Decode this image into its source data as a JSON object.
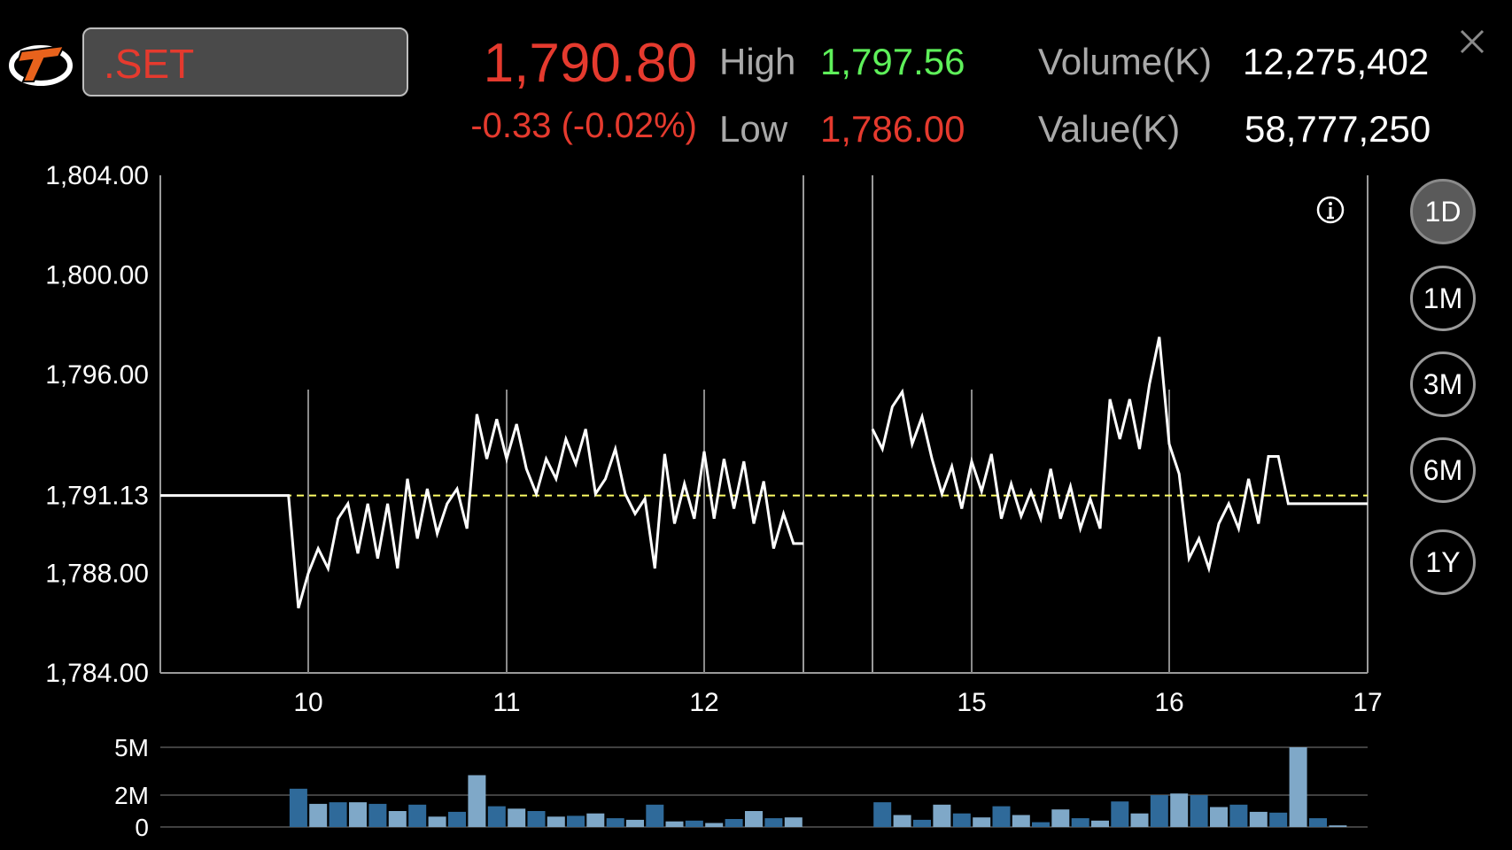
{
  "header": {
    "symbol": ".SET",
    "last_price": "1,790.80",
    "change": "-0.33 (-0.02%)",
    "high_label": "High",
    "high_value": "1,797.56",
    "low_label": "Low",
    "low_value": "1,786.00",
    "volume_label": "Volume(K)",
    "volume_value": "12,275,402",
    "value_label": "Value(K)",
    "value_value": "58,777,250"
  },
  "periods": [
    "1D",
    "1M",
    "3M",
    "6M",
    "1Y"
  ],
  "active_period": "1D",
  "icons": {
    "logo": "brand-logo",
    "close": "close-icon",
    "info": "info-icon"
  },
  "colors": {
    "down": "#e53a2e",
    "up": "#5ef05a",
    "reference": "#ffff66",
    "line": "#ffffff",
    "volume_dark": "#2f6a9a",
    "volume_light": "#7fa8c8"
  },
  "chart_data": [
    {
      "type": "line",
      "title": "",
      "xlabel": "",
      "ylabel": "",
      "x_ticks": [
        "10",
        "11",
        "12",
        "15",
        "16",
        "17"
      ],
      "y_ticks": [
        "1,804.00",
        "1,800.00",
        "1,796.00",
        "1,788.00",
        "1,784.00"
      ],
      "ylim": [
        1784,
        1804
      ],
      "reference_line": {
        "label": "1,791.13",
        "value": 1791.13
      },
      "grid": true,
      "series": [
        {
          "x": [
            9.25,
            9.9,
            9.95,
            10.0,
            10.05,
            10.1,
            10.15,
            10.2,
            10.25,
            10.3,
            10.35,
            10.4,
            10.45,
            10.5,
            10.55,
            10.6,
            10.65,
            10.7,
            10.75,
            10.8,
            10.85,
            10.9,
            10.95,
            11.0,
            11.05,
            11.1,
            11.15,
            11.2,
            11.25,
            11.3,
            11.35,
            11.4,
            11.45,
            11.5,
            11.55,
            11.6,
            11.65,
            11.7,
            11.75,
            11.8,
            11.85,
            11.9,
            11.95,
            12.0,
            12.05,
            12.1,
            12.15,
            12.2,
            12.25,
            12.3,
            12.35,
            12.4,
            12.45,
            12.5
          ],
          "y": [
            1791.13,
            1791.13,
            1786.6,
            1788.0,
            1789.0,
            1788.2,
            1790.2,
            1790.8,
            1788.8,
            1790.8,
            1788.6,
            1790.8,
            1788.2,
            1791.8,
            1789.4,
            1791.4,
            1789.6,
            1790.8,
            1791.4,
            1789.8,
            1794.4,
            1792.6,
            1794.2,
            1792.6,
            1794.0,
            1792.2,
            1791.2,
            1792.6,
            1791.8,
            1793.4,
            1792.4,
            1793.8,
            1791.2,
            1791.8,
            1793.0,
            1791.2,
            1790.4,
            1791.0,
            1788.2,
            1792.8,
            1790.0,
            1791.6,
            1790.2,
            1792.9,
            1790.2,
            1792.6,
            1790.6,
            1792.5,
            1790.0,
            1791.7,
            1789.0,
            1790.4,
            1789.2,
            1789.2
          ]
        },
        {
          "x": [
            14.5,
            14.55,
            14.6,
            14.65,
            14.7,
            14.75,
            14.8,
            14.85,
            14.9,
            14.95,
            15.0,
            15.05,
            15.1,
            15.15,
            15.2,
            15.25,
            15.3,
            15.35,
            15.4,
            15.45,
            15.5,
            15.55,
            15.6,
            15.65,
            15.7,
            15.75,
            15.8,
            15.85,
            15.9,
            15.95,
            16.0,
            16.05,
            16.1,
            16.15,
            16.2,
            16.25,
            16.3,
            16.35,
            16.4,
            16.45,
            16.5,
            16.55,
            16.6,
            16.65,
            16.7,
            16.75,
            17.0
          ],
          "y": [
            1793.8,
            1793.0,
            1794.7,
            1795.3,
            1793.2,
            1794.3,
            1792.6,
            1791.2,
            1792.3,
            1790.6,
            1792.5,
            1791.3,
            1792.8,
            1790.2,
            1791.6,
            1790.3,
            1791.3,
            1790.2,
            1792.2,
            1790.2,
            1791.5,
            1789.8,
            1791.0,
            1789.8,
            1795.0,
            1793.4,
            1795.0,
            1793.0,
            1795.6,
            1797.5,
            1793.2,
            1792.0,
            1788.6,
            1789.4,
            1788.2,
            1790.0,
            1790.8,
            1789.8,
            1791.8,
            1790.0,
            1792.7,
            1792.7,
            1790.8,
            1790.8,
            1790.8,
            1790.8,
            1790.8
          ]
        }
      ]
    },
    {
      "type": "bar",
      "title": "",
      "xlabel": "",
      "ylabel": "",
      "y_ticks": [
        "5M",
        "2M",
        "0"
      ],
      "ylim": [
        0,
        5
      ],
      "series": [
        {
          "name": "",
          "x": [
            9.95,
            10.05,
            10.15,
            10.25,
            10.35,
            10.45,
            10.55,
            10.65,
            10.75,
            10.85,
            10.95,
            11.05,
            11.15,
            11.25,
            11.35,
            11.45,
            11.55,
            11.65,
            11.75,
            11.85,
            11.95,
            12.05,
            12.15,
            12.25,
            12.35,
            12.45
          ],
          "values": [
            2.4,
            1.45,
            1.55,
            1.55,
            1.45,
            1.0,
            1.4,
            0.65,
            0.95,
            3.25,
            1.3,
            1.15,
            1.0,
            0.65,
            0.7,
            0.85,
            0.55,
            0.45,
            1.4,
            0.35,
            0.4,
            0.25,
            0.5,
            1.0,
            0.55,
            0.6
          ]
        },
        {
          "name": "",
          "x": [
            14.55,
            14.65,
            14.75,
            14.85,
            14.95,
            15.05,
            15.15,
            15.25,
            15.35,
            15.45,
            15.55,
            15.65,
            15.75,
            15.85,
            15.95,
            16.05,
            16.15,
            16.25,
            16.35,
            16.45,
            16.55,
            16.65,
            16.75,
            16.85
          ],
          "values": [
            1.55,
            0.75,
            0.45,
            1.4,
            0.85,
            0.6,
            1.3,
            0.75,
            0.3,
            1.1,
            0.55,
            0.4,
            1.6,
            0.85,
            2.0,
            2.1,
            2.0,
            1.25,
            1.4,
            0.95,
            0.9,
            5.0,
            0.55,
            0.1
          ]
        }
      ]
    }
  ]
}
